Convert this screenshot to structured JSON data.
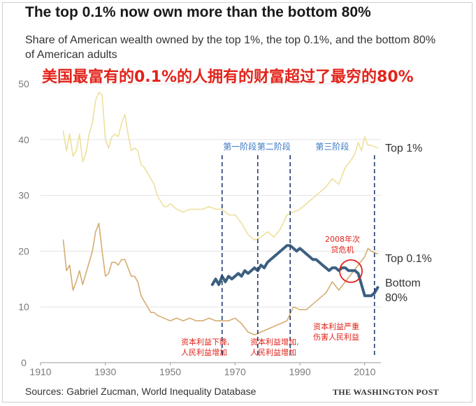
{
  "title": "The top 0.1% now own more than the bottom 80%",
  "subtitle": "Share of American wealth owned by the top 1%, the top 0.1%, and the bottom 80% of American adults",
  "overlay_title": "美国最富有的0.1%的人拥有的财富超过了最穷的80%",
  "source": "Sources: Gabriel Zucman, World Inequality Database",
  "logo": "THE WASHINGTON POST",
  "chart_data": {
    "type": "line",
    "title": "The top 0.1% now own more than the bottom 80%",
    "subtitle": "Share of American wealth owned by the top 1%, the top 0.1%, and the bottom 80% of American adults",
    "xlabel": "",
    "ylabel": "",
    "xlim": [
      1910,
      2015
    ],
    "ylim": [
      0,
      50
    ],
    "x_ticks": [
      "1910",
      "1930",
      "1950",
      "1970",
      "1990",
      "2010"
    ],
    "y_ticks": [
      "0",
      "10",
      "20",
      "30",
      "40",
      "50"
    ],
    "grid": true,
    "series": [
      {
        "name": "Top 1%",
        "color": "#ede09d",
        "x": [
          1917,
          1918,
          1919,
          1920,
          1921,
          1922,
          1923,
          1924,
          1925,
          1926,
          1927,
          1928,
          1929,
          1930,
          1931,
          1932,
          1933,
          1934,
          1935,
          1936,
          1937,
          1938,
          1939,
          1940,
          1941,
          1942,
          1943,
          1944,
          1945,
          1946,
          1947,
          1948,
          1949,
          1950,
          1952,
          1954,
          1956,
          1958,
          1960,
          1962,
          1964,
          1966,
          1968,
          1970,
          1972,
          1974,
          1976,
          1978,
          1980,
          1982,
          1984,
          1986,
          1988,
          1990,
          1992,
          1994,
          1996,
          1998,
          2000,
          2002,
          2004,
          2006,
          2007,
          2008,
          2009,
          2010,
          2011,
          2012,
          2014
        ],
        "values": [
          41.5,
          38,
          41,
          37,
          38,
          41,
          36,
          37.5,
          41,
          43,
          47,
          48.5,
          48,
          40,
          38.5,
          40.5,
          41,
          40.5,
          43,
          44.5,
          41,
          38,
          38.5,
          38,
          35.5,
          35,
          34,
          33,
          32,
          30,
          29,
          28,
          28,
          28.5,
          27.5,
          27,
          27.5,
          27.5,
          27.5,
          28,
          27.5,
          27.5,
          26.5,
          26.5,
          25,
          23,
          22,
          22.5,
          23.5,
          22.5,
          24,
          26.5,
          27,
          27.5,
          28.5,
          29.5,
          30.5,
          31.5,
          33,
          32,
          35,
          36.5,
          37.5,
          39.5,
          38,
          40.5,
          39,
          39,
          38.5
        ]
      },
      {
        "name": "Top 0.1%",
        "color": "#d4ad72",
        "x": [
          1917,
          1918,
          1919,
          1920,
          1921,
          1922,
          1923,
          1924,
          1925,
          1926,
          1927,
          1928,
          1929,
          1930,
          1931,
          1932,
          1933,
          1934,
          1935,
          1936,
          1937,
          1938,
          1939,
          1940,
          1941,
          1942,
          1943,
          1944,
          1945,
          1946,
          1948,
          1950,
          1952,
          1954,
          1956,
          1958,
          1960,
          1962,
          1964,
          1966,
          1968,
          1970,
          1972,
          1974,
          1976,
          1978,
          1980,
          1982,
          1984,
          1986,
          1988,
          1990,
          1992,
          1994,
          1996,
          1998,
          2000,
          2002,
          2004,
          2006,
          2008,
          2010,
          2011,
          2012,
          2014
        ],
        "values": [
          22,
          16.5,
          17.5,
          13,
          14.5,
          16.5,
          14,
          16,
          18,
          20,
          23.5,
          25,
          20,
          15.5,
          16,
          18,
          18,
          17.5,
          18.5,
          18.5,
          17,
          15.5,
          15.5,
          14.5,
          12,
          11,
          10,
          9,
          9,
          8.5,
          8,
          7.5,
          8,
          7.5,
          8,
          7.5,
          7.5,
          8,
          7.5,
          7.5,
          7.5,
          8,
          7,
          5.5,
          5,
          5.5,
          6,
          6.5,
          7,
          7.5,
          10,
          9.5,
          9.5,
          10.5,
          11.5,
          12.5,
          14.5,
          13,
          14.5,
          16,
          17.5,
          19,
          20.5,
          20,
          19.5
        ]
      },
      {
        "name": "Bottom 80%",
        "color": "#3c5f80",
        "x": [
          1963,
          1964,
          1965,
          1966,
          1967,
          1968,
          1969,
          1970,
          1971,
          1972,
          1973,
          1974,
          1975,
          1976,
          1977,
          1978,
          1979,
          1980,
          1981,
          1982,
          1983,
          1984,
          1985,
          1986,
          1987,
          1988,
          1989,
          1990,
          1991,
          1992,
          1993,
          1994,
          1995,
          1996,
          1997,
          1998,
          1999,
          2000,
          2001,
          2002,
          2003,
          2004,
          2005,
          2006,
          2007,
          2008,
          2009,
          2010,
          2011,
          2012,
          2013,
          2014
        ],
        "values": [
          14,
          15,
          14,
          15.5,
          14.5,
          15.5,
          15,
          15.5,
          16,
          15.5,
          16.5,
          16,
          16.5,
          17,
          16.5,
          17.5,
          17,
          18,
          18.5,
          19,
          19.5,
          20,
          20.5,
          21,
          21,
          20.5,
          20,
          20.5,
          20,
          19.5,
          19,
          18.5,
          18.5,
          18,
          17.5,
          17,
          16.5,
          17,
          17,
          16.5,
          17,
          17,
          16.5,
          16.5,
          16.5,
          16,
          14,
          12,
          12,
          12,
          12.5,
          13.5
        ]
      }
    ],
    "phase_lines": [
      1966,
      1977,
      1987,
      2013
    ],
    "phase_labels": [
      {
        "text": "第一阶段",
        "x": 1971.5
      },
      {
        "text": "第二阶段",
        "x": 1982
      },
      {
        "text": "第三阶段",
        "x": 2000
      }
    ],
    "annotations": [
      {
        "lines": [
          "资本利益下降,",
          "人民利益增加"
        ]
      },
      {
        "lines": [
          "资本利益增加,",
          "人民利益增加"
        ]
      },
      {
        "lines": [
          "资本利益严重",
          "伤害人民利益"
        ]
      },
      {
        "lines": [
          "2008年次",
          "贷危机"
        ]
      }
    ],
    "series_labels": [
      {
        "lines": [
          "Top 1%"
        ]
      },
      {
        "lines": [
          "Top 0.1%"
        ]
      },
      {
        "lines": [
          "Bottom",
          "80%"
        ]
      }
    ]
  }
}
